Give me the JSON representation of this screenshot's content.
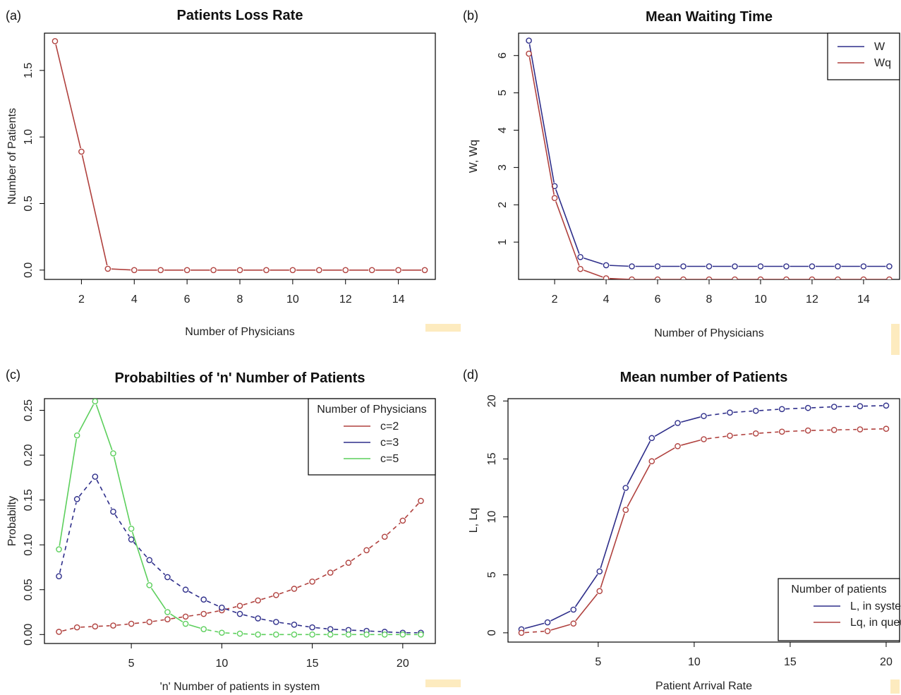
{
  "chart_data": [
    {
      "panel": "(a)",
      "type": "line",
      "title": "Patients Loss Rate",
      "xlabel": "Number of Physicians",
      "ylabel": "Number of Patients",
      "xlim": [
        0.6,
        15.4
      ],
      "ylim": [
        -0.07,
        1.78
      ],
      "xticks": [
        2,
        4,
        6,
        8,
        10,
        12,
        14
      ],
      "yticks": [
        0.0,
        0.5,
        1.0,
        1.5
      ],
      "ytick_labels": [
        "0.0",
        "0.5",
        "1.0",
        "1.5"
      ],
      "series": [
        {
          "color": "#b0413e",
          "style": "solid",
          "x": [
            1,
            2,
            3,
            4,
            5,
            6,
            7,
            8,
            9,
            10,
            11,
            12,
            13,
            14,
            15
          ],
          "y": [
            1.72,
            0.89,
            0.01,
            0,
            0,
            0,
            0,
            0,
            0,
            0,
            0,
            0,
            0,
            0,
            0
          ]
        }
      ]
    },
    {
      "panel": "(b)",
      "type": "line",
      "title": "Mean Waiting Time",
      "xlabel": "Number of Physicians",
      "ylabel": "W, Wq",
      "xlim": [
        0.6,
        15.4
      ],
      "ylim": [
        0,
        6.6
      ],
      "xticks": [
        2,
        4,
        6,
        8,
        10,
        12,
        14
      ],
      "yticks": [
        1,
        2,
        3,
        4,
        5,
        6
      ],
      "ytick_labels": [
        "1",
        "2",
        "3",
        "4",
        "5",
        "6"
      ],
      "legend": {
        "position": "top-right"
      },
      "series": [
        {
          "name": "W",
          "color": "#2e2e8a",
          "style": "solid",
          "x": [
            1,
            2,
            3,
            4,
            5,
            6,
            7,
            8,
            9,
            10,
            11,
            12,
            13,
            14,
            15
          ],
          "y": [
            6.4,
            2.5,
            0.6,
            0.38,
            0.35,
            0.35,
            0.35,
            0.35,
            0.35,
            0.35,
            0.35,
            0.35,
            0.35,
            0.35,
            0.35
          ]
        },
        {
          "name": "Wq",
          "color": "#b0413e",
          "style": "solid",
          "x": [
            1,
            2,
            3,
            4,
            5,
            6,
            7,
            8,
            9,
            10,
            11,
            12,
            13,
            14,
            15
          ],
          "y": [
            6.05,
            2.18,
            0.28,
            0.03,
            0,
            0,
            0,
            0,
            0,
            0,
            0,
            0,
            0,
            0,
            0
          ]
        }
      ]
    },
    {
      "panel": "(c)",
      "type": "line",
      "title": "Probabilties of 'n' Number of Patients",
      "xlabel": "'n' Number of patients in system",
      "ylabel": "Probabilty",
      "xlim": [
        0.2,
        21.8
      ],
      "ylim": [
        -0.01,
        0.263
      ],
      "xticks": [
        5,
        10,
        15,
        20
      ],
      "yticks": [
        0.0,
        0.05,
        0.1,
        0.15,
        0.2,
        0.25
      ],
      "ytick_labels": [
        "0.00",
        "0.05",
        "0.10",
        "0.15",
        "0.20",
        "0.25"
      ],
      "legend": {
        "title": "Number of Physicians",
        "position": "top-right"
      },
      "series": [
        {
          "name": "c=2",
          "color": "#b0413e",
          "style": "dashed",
          "x": [
            1,
            2,
            3,
            4,
            5,
            6,
            7,
            8,
            9,
            10,
            11,
            12,
            13,
            14,
            15,
            16,
            17,
            18,
            19,
            20,
            21
          ],
          "y": [
            0.003,
            0.008,
            0.009,
            0.01,
            0.012,
            0.014,
            0.017,
            0.02,
            0.023,
            0.027,
            0.032,
            0.038,
            0.044,
            0.051,
            0.059,
            0.069,
            0.08,
            0.094,
            0.109,
            0.127,
            0.149
          ]
        },
        {
          "name": "c=3",
          "color": "#2e2e8a",
          "style": "dashed",
          "x": [
            1,
            2,
            3,
            4,
            5,
            6,
            7,
            8,
            9,
            10,
            11,
            12,
            13,
            14,
            15,
            16,
            17,
            18,
            19,
            20,
            21
          ],
          "y": [
            0.065,
            0.151,
            0.176,
            0.137,
            0.106,
            0.083,
            0.064,
            0.05,
            0.039,
            0.03,
            0.023,
            0.018,
            0.014,
            0.011,
            0.008,
            0.006,
            0.005,
            0.004,
            0.003,
            0.002,
            0.002
          ]
        },
        {
          "name": "c=5",
          "color": "#5ccf5c",
          "style": "solid-then-dashed",
          "x": [
            1,
            2,
            3,
            4,
            5,
            6,
            7,
            8,
            9,
            10,
            11,
            12,
            13,
            14,
            15,
            16,
            17,
            18,
            19,
            20,
            21
          ],
          "y": [
            0.095,
            0.222,
            0.26,
            0.202,
            0.118,
            0.055,
            0.025,
            0.012,
            0.006,
            0.002,
            0.001,
            0.0,
            0.0,
            0.0,
            0.0,
            0.0,
            0.0,
            0.0,
            0.0,
            0.0,
            0.0
          ]
        }
      ]
    },
    {
      "panel": "(d)",
      "type": "line",
      "title": "Mean number of Patients",
      "xlabel": "Patient Arrival Rate",
      "ylabel": "L, Lq",
      "xlim": [
        0.3,
        20.7
      ],
      "ylim": [
        -0.8,
        20.2
      ],
      "xticks": [
        5,
        10,
        15,
        20
      ],
      "yticks": [
        0,
        5,
        10,
        15,
        20
      ],
      "ytick_labels": [
        "0",
        "5",
        "10",
        "15",
        "20"
      ],
      "legend": {
        "title": "Number of patients",
        "position": "bottom-right"
      },
      "series": [
        {
          "name": "L, in system",
          "color": "#2e2e8a",
          "style": "solid-then-dashed",
          "x": [
            1,
            2.36,
            3.71,
            5.07,
            6.43,
            7.79,
            9.14,
            10.5,
            11.86,
            13.21,
            14.57,
            15.93,
            17.29,
            18.64,
            20
          ],
          "y": [
            0.3,
            0.9,
            2.0,
            5.3,
            12.5,
            16.8,
            18.1,
            18.7,
            19.0,
            19.15,
            19.3,
            19.4,
            19.5,
            19.55,
            19.6
          ]
        },
        {
          "name": "Lq, in queue",
          "color": "#b0413e",
          "style": "solid-then-dashed",
          "x": [
            1,
            2.36,
            3.71,
            5.07,
            6.43,
            7.79,
            9.14,
            10.5,
            11.86,
            13.21,
            14.57,
            15.93,
            17.29,
            18.64,
            20
          ],
          "y": [
            0.0,
            0.15,
            0.8,
            3.6,
            10.6,
            14.8,
            16.1,
            16.7,
            17.0,
            17.2,
            17.35,
            17.45,
            17.5,
            17.55,
            17.6
          ]
        }
      ]
    }
  ]
}
